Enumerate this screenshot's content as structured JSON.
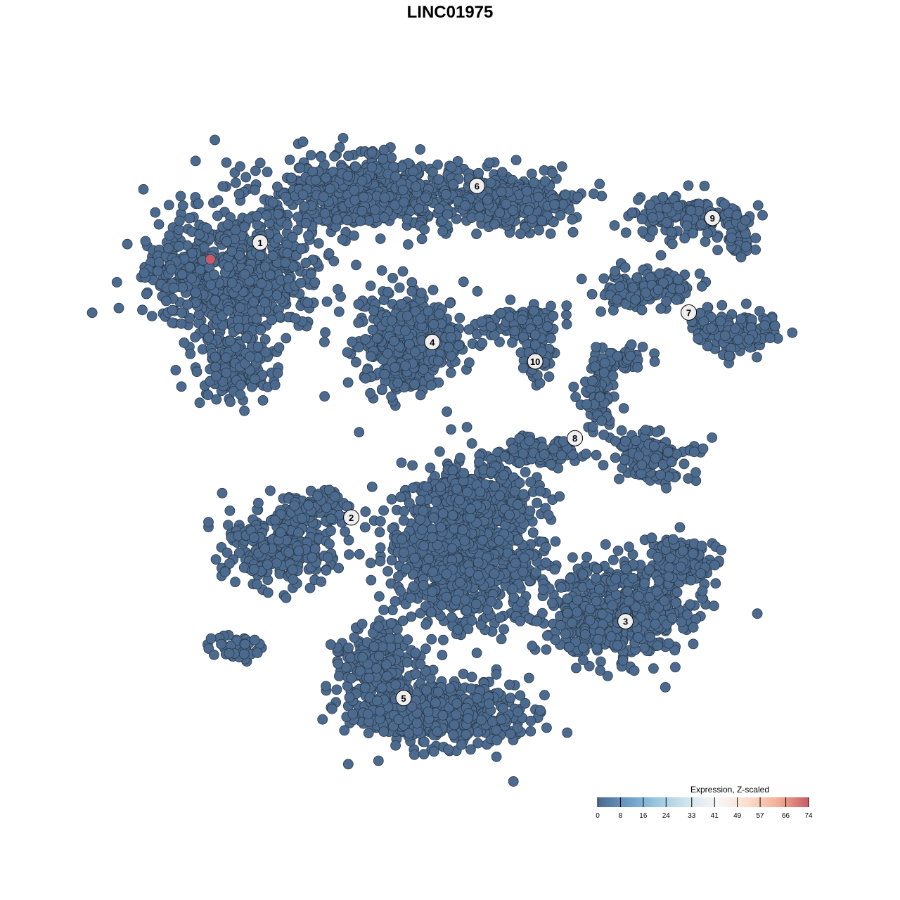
{
  "chart_data": {
    "type": "scatter",
    "title": "LINC01975",
    "xlabel": "",
    "ylabel": "",
    "axes_visible": false,
    "grid": false,
    "point_color_default": "#4b6a8e",
    "point_stroke": "#2b3a4a",
    "clusters": [
      {
        "label": "1",
        "x": -22.5,
        "y": 24.6
      },
      {
        "label": "6",
        "x": 3.2,
        "y": 31.3
      },
      {
        "label": "9",
        "x": 31.1,
        "y": 27.5
      },
      {
        "label": "7",
        "x": 28.3,
        "y": 16.3
      },
      {
        "label": "4",
        "x": -2.1,
        "y": 12.8
      },
      {
        "label": "10",
        "x": 10.1,
        "y": 10.5
      },
      {
        "label": "8",
        "x": 14.8,
        "y": 1.4
      },
      {
        "label": "2",
        "x": -11.7,
        "y": -8.0
      },
      {
        "label": "3",
        "x": 20.8,
        "y": -20.3
      },
      {
        "label": "5",
        "x": -5.5,
        "y": -29.4
      }
    ],
    "baseline_expression": 0,
    "highlighted_points": [
      {
        "x": -28.4,
        "y": 22.6,
        "expression": 74,
        "color": "#c75a66"
      }
    ],
    "legend": {
      "title": "Expression, Z-scaled",
      "placement": "bottom-right",
      "ticks": [
        "0",
        "8",
        "16",
        "24",
        "33",
        "41",
        "49",
        "57",
        "66",
        "74"
      ],
      "range": [
        0,
        74
      ],
      "colors": [
        "#4b6a8e",
        "#6b9cc6",
        "#9ccae0",
        "#d3e5ef",
        "#f7f7f7",
        "#fbdccc",
        "#f3ae94",
        "#c75a66"
      ]
    }
  }
}
